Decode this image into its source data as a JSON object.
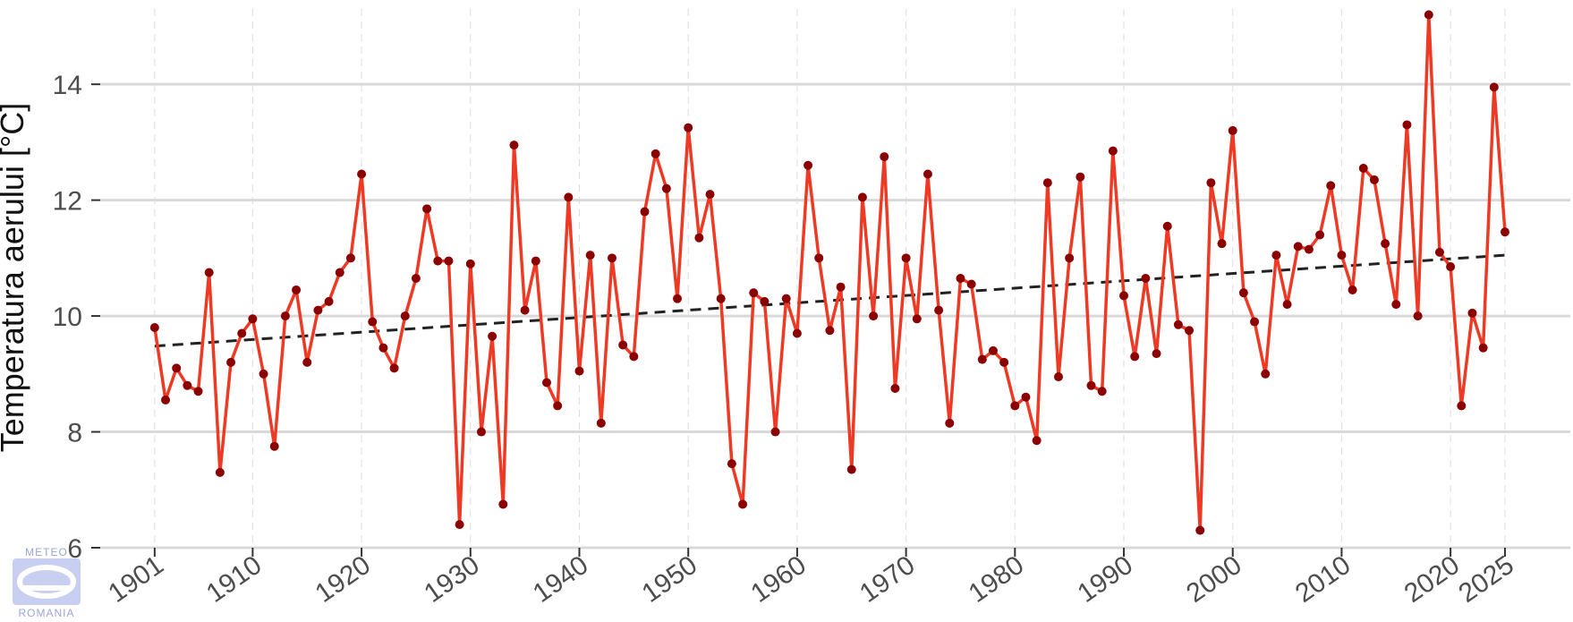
{
  "chart_data": {
    "type": "line",
    "title": "",
    "xlabel": "",
    "ylabel": "Temperatura aerului [°C]",
    "xlim": [
      1896,
      2031
    ],
    "ylim": [
      6,
      15.3
    ],
    "x_ticks": [
      1901,
      1910,
      1920,
      1930,
      1940,
      1950,
      1960,
      1970,
      1980,
      1990,
      2000,
      2010,
      2020,
      2025
    ],
    "y_ticks": [
      6,
      8,
      10,
      12,
      14
    ],
    "grid": true,
    "legend": "none",
    "series": [
      {
        "color": "#ee3a24",
        "marker_color": "#8b0000",
        "x": [
          1901,
          1902,
          1903,
          1904,
          1905,
          1906,
          1907,
          1908,
          1909,
          1910,
          1911,
          1912,
          1913,
          1914,
          1915,
          1916,
          1917,
          1918,
          1919,
          1920,
          1921,
          1922,
          1923,
          1924,
          1925,
          1926,
          1927,
          1928,
          1929,
          1930,
          1931,
          1932,
          1933,
          1934,
          1935,
          1936,
          1937,
          1938,
          1939,
          1940,
          1941,
          1942,
          1943,
          1944,
          1945,
          1946,
          1947,
          1948,
          1949,
          1950,
          1951,
          1952,
          1953,
          1954,
          1955,
          1956,
          1957,
          1958,
          1959,
          1960,
          1961,
          1962,
          1963,
          1964,
          1965,
          1966,
          1967,
          1968,
          1969,
          1970,
          1971,
          1972,
          1973,
          1974,
          1975,
          1976,
          1977,
          1978,
          1979,
          1980,
          1981,
          1982,
          1983,
          1984,
          1985,
          1986,
          1987,
          1988,
          1989,
          1990,
          1991,
          1992,
          1993,
          1994,
          1995,
          1996,
          1997,
          1998,
          1999,
          2000,
          2001,
          2002,
          2003,
          2004,
          2005,
          2006,
          2007,
          2008,
          2009,
          2010,
          2011,
          2012,
          2013,
          2014,
          2015,
          2016,
          2017,
          2018,
          2019,
          2020,
          2021,
          2022,
          2023,
          2024,
          2025
        ],
        "y": [
          9.8,
          8.55,
          9.1,
          8.8,
          8.7,
          10.75,
          7.3,
          9.2,
          9.7,
          9.95,
          9.0,
          7.75,
          10.0,
          10.45,
          9.2,
          10.1,
          10.25,
          10.75,
          11.0,
          12.45,
          9.9,
          9.45,
          9.1,
          10.0,
          10.65,
          11.85,
          10.95,
          10.95,
          6.4,
          10.9,
          8.0,
          9.65,
          6.75,
          12.95,
          10.1,
          10.95,
          8.85,
          8.45,
          12.05,
          9.05,
          11.05,
          8.15,
          11.0,
          9.5,
          9.3,
          11.8,
          12.8,
          12.2,
          10.3,
          13.25,
          11.35,
          12.1,
          10.3,
          7.45,
          6.75,
          10.4,
          10.25,
          8.0,
          10.3,
          9.7,
          12.6,
          11.0,
          9.75,
          10.5,
          7.35,
          12.05,
          10.0,
          12.75,
          8.75,
          11.0,
          9.95,
          12.45,
          10.1,
          8.15,
          10.65,
          10.55,
          9.25,
          9.4,
          9.2,
          8.45,
          8.6,
          7.85,
          12.3,
          8.95,
          11.0,
          12.4,
          8.8,
          8.7,
          12.85,
          10.35,
          9.3,
          10.65,
          9.35,
          11.55,
          9.85,
          9.75,
          6.3,
          12.3,
          11.25,
          13.2,
          10.4,
          9.9,
          9.0,
          11.05,
          10.2,
          11.2,
          11.15,
          11.4,
          12.25,
          11.05,
          10.45,
          12.55,
          12.35,
          11.25,
          10.2,
          13.3,
          10.0,
          15.2,
          11.1,
          10.85,
          8.45,
          10.05,
          9.45,
          13.95,
          11.45
        ]
      }
    ],
    "trend": {
      "style": "dashed",
      "color": "#222222",
      "x": [
        1901,
        2025
      ],
      "y": [
        9.48,
        11.05
      ]
    }
  },
  "logo": {
    "top_text": "METEO",
    "bottom_text": "ROMANIA"
  }
}
